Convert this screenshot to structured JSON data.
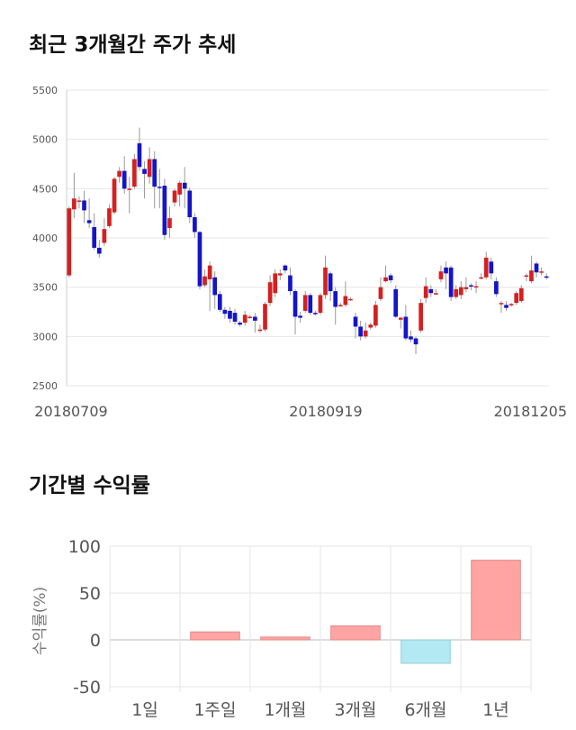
{
  "sections": {
    "price_title": "최근 3개월간 주가 추세",
    "returns_title": "기간별 수익률"
  },
  "colors": {
    "up": "#d42020",
    "down": "#1414c8",
    "positive_bar": "#ffa3a3",
    "negative_bar": "#b3e9f2",
    "grid": "#e6e6e6",
    "axis_text": "#555555"
  },
  "chart_data": [
    {
      "type": "candlestick",
      "title": "",
      "ylim": [
        2500,
        5500
      ],
      "yticks": [
        2500,
        3000,
        3500,
        4000,
        4500,
        5000,
        5500
      ],
      "xtick_labels": [
        "20180709",
        "20180919",
        "20181205"
      ],
      "grid": true,
      "candles": [
        [
          3620,
          4300,
          3600,
          4320
        ],
        [
          4290,
          4400,
          4200,
          4660
        ],
        [
          4380,
          4380,
          4300,
          4420
        ],
        [
          4380,
          4280,
          4150,
          4480
        ],
        [
          4180,
          4150,
          4100,
          4400
        ],
        [
          4110,
          3900,
          3880,
          4250
        ],
        [
          3900,
          3840,
          3800,
          3980
        ],
        [
          3950,
          4090,
          3920,
          4200
        ],
        [
          4120,
          4300,
          4100,
          4340
        ],
        [
          4260,
          4600,
          4240,
          4620
        ],
        [
          4620,
          4680,
          4560,
          4720
        ],
        [
          4680,
          4500,
          4450,
          4830
        ],
        [
          4500,
          4500,
          4250,
          4620
        ],
        [
          4520,
          4800,
          4500,
          4850
        ],
        [
          4960,
          4720,
          4680,
          5120
        ],
        [
          4700,
          4650,
          4400,
          4780
        ],
        [
          4620,
          4800,
          4550,
          4920
        ],
        [
          4800,
          4520,
          4300,
          4880
        ],
        [
          4520,
          4510,
          4300,
          4700
        ],
        [
          4530,
          4030,
          3980,
          4600
        ],
        [
          4100,
          4200,
          4000,
          4320
        ],
        [
          4360,
          4480,
          4320,
          4500
        ],
        [
          4440,
          4560,
          4320,
          4580
        ],
        [
          4560,
          4500,
          4300,
          4720
        ],
        [
          4480,
          4210,
          4150,
          4510
        ],
        [
          4210,
          4060,
          4000,
          4250
        ],
        [
          4060,
          3510,
          3480,
          4070
        ],
        [
          3520,
          3610,
          3500,
          3680
        ],
        [
          3580,
          3720,
          3260,
          3760
        ],
        [
          3600,
          3420,
          3280,
          3660
        ],
        [
          3430,
          3270,
          3250,
          3460
        ],
        [
          3270,
          3230,
          3180,
          3300
        ],
        [
          3260,
          3180,
          3140,
          3300
        ],
        [
          3240,
          3150,
          3120,
          3280
        ],
        [
          3140,
          3120,
          3100,
          3160
        ],
        [
          3140,
          3220,
          3110,
          3260
        ],
        [
          3200,
          3200,
          3180,
          3220
        ],
        [
          3200,
          3160,
          3040,
          3240
        ],
        [
          3070,
          3070,
          3040,
          3120
        ],
        [
          3070,
          3330,
          3050,
          3350
        ],
        [
          3340,
          3550,
          3310,
          3620
        ],
        [
          3440,
          3640,
          3400,
          3680
        ],
        [
          3620,
          3640,
          3570,
          3680
        ],
        [
          3720,
          3670,
          3640,
          3730
        ],
        [
          3620,
          3460,
          3420,
          3700
        ],
        [
          3460,
          3200,
          3020,
          3480
        ],
        [
          3210,
          3190,
          3140,
          3250
        ],
        [
          3260,
          3420,
          3240,
          3460
        ],
        [
          3420,
          3240,
          3220,
          3440
        ],
        [
          3240,
          3230,
          3210,
          3260
        ],
        [
          3240,
          3420,
          3220,
          3440
        ],
        [
          3420,
          3700,
          3380,
          3820
        ],
        [
          3640,
          3460,
          3360,
          3660
        ],
        [
          3460,
          3300,
          3120,
          3500
        ],
        [
          3310,
          3320,
          3300,
          3340
        ],
        [
          3320,
          3410,
          3300,
          3560
        ],
        [
          3380,
          3380,
          3360,
          3400
        ],
        [
          3200,
          3100,
          2980,
          3240
        ],
        [
          3100,
          3000,
          2960,
          3160
        ],
        [
          3000,
          3060,
          2980,
          3140
        ],
        [
          3090,
          3120,
          3070,
          3140
        ],
        [
          3110,
          3320,
          3090,
          3360
        ],
        [
          3380,
          3500,
          3360,
          3600
        ],
        [
          3560,
          3600,
          3550,
          3720
        ],
        [
          3620,
          3570,
          3540,
          3640
        ],
        [
          3480,
          3200,
          3190,
          3520
        ],
        [
          3170,
          3190,
          3080,
          3200
        ],
        [
          3200,
          2980,
          2960,
          3320
        ],
        [
          3000,
          2970,
          2940,
          3060
        ],
        [
          2980,
          2920,
          2820,
          3000
        ],
        [
          3060,
          3340,
          3040,
          3380
        ],
        [
          3390,
          3510,
          3340,
          3600
        ],
        [
          3480,
          3440,
          3400,
          3520
        ],
        [
          3440,
          3440,
          3420,
          3480
        ],
        [
          3580,
          3660,
          3550,
          3720
        ],
        [
          3700,
          3640,
          3480,
          3760
        ],
        [
          3700,
          3400,
          3360,
          3720
        ],
        [
          3400,
          3480,
          3380,
          3520
        ],
        [
          3420,
          3500,
          3380,
          3560
        ],
        [
          3480,
          3500,
          3450,
          3600
        ],
        [
          3520,
          3510,
          3470,
          3540
        ],
        [
          3500,
          3510,
          3440,
          3560
        ],
        [
          3600,
          3600,
          3580,
          3640
        ],
        [
          3600,
          3800,
          3580,
          3860
        ],
        [
          3760,
          3640,
          3580,
          3800
        ],
        [
          3560,
          3430,
          3400,
          3600
        ],
        [
          3340,
          3340,
          3240,
          3360
        ],
        [
          3320,
          3290,
          3260,
          3360
        ],
        [
          3320,
          3330,
          3300,
          3340
        ],
        [
          3340,
          3440,
          3320,
          3460
        ],
        [
          3360,
          3490,
          3340,
          3520
        ],
        [
          3620,
          3620,
          3560,
          3640
        ],
        [
          3560,
          3670,
          3540,
          3820
        ],
        [
          3740,
          3650,
          3600,
          3760
        ],
        [
          3660,
          3660,
          3620,
          3700
        ],
        [
          3610,
          3600,
          3580,
          3640
        ]
      ]
    },
    {
      "type": "bar",
      "title": "",
      "ylabel": "수익률(%)",
      "ylim": [
        -50,
        100
      ],
      "yticks": [
        -50,
        0,
        50,
        100
      ],
      "categories": [
        "1일",
        "1주일",
        "1개월",
        "3개월",
        "6개월",
        "1년"
      ],
      "values": [
        0.0,
        8.5,
        3.0,
        15.0,
        -25.0,
        85.0
      ],
      "grid": true
    }
  ]
}
